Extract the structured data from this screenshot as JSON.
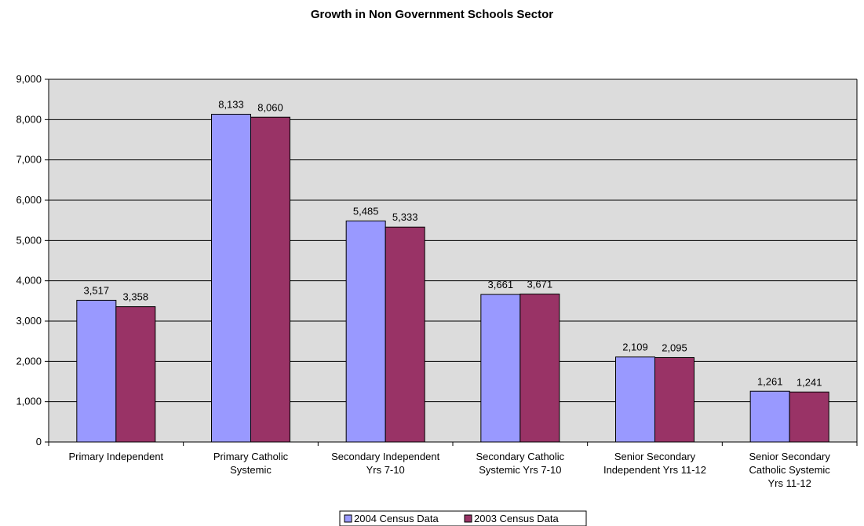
{
  "chart_data": {
    "type": "bar",
    "title": "Growth in Non Government Schools Sector",
    "xlabel": "",
    "ylabel": "",
    "ylim": [
      0,
      9000
    ],
    "yticks": [
      0,
      1000,
      2000,
      3000,
      4000,
      5000,
      6000,
      7000,
      8000,
      9000
    ],
    "ytick_labels": [
      "0",
      "1,000",
      "2,000",
      "3,000",
      "4,000",
      "5,000",
      "6,000",
      "7,000",
      "8,000",
      "9,000"
    ],
    "grid": true,
    "legend_position": "bottom",
    "categories": [
      [
        "Primary Independent"
      ],
      [
        "Primary Catholic",
        "Systemic"
      ],
      [
        "Secondary Independent",
        "Yrs 7-10"
      ],
      [
        "Secondary Catholic",
        "Systemic  Yrs 7-10"
      ],
      [
        "Senior Secondary",
        "Independent  Yrs 11-12"
      ],
      [
        "Senior Secondary",
        "Catholic Systemic",
        "Yrs 11-12"
      ]
    ],
    "series": [
      {
        "name": "2004 Census Data",
        "color": "#9999ff",
        "values": [
          3517,
          8133,
          5485,
          3661,
          2109,
          1261
        ],
        "labels": [
          "3,517",
          "8,133",
          "5,485",
          "3,661",
          "2,109",
          "1,261"
        ]
      },
      {
        "name": "2003 Census Data",
        "color": "#993366",
        "values": [
          3358,
          8060,
          5333,
          3671,
          2095,
          1241
        ],
        "labels": [
          "3,358",
          "8,060",
          "5,333",
          "3,671",
          "2,095",
          "1,241"
        ]
      }
    ],
    "plot_background": "#c0c0c0"
  }
}
